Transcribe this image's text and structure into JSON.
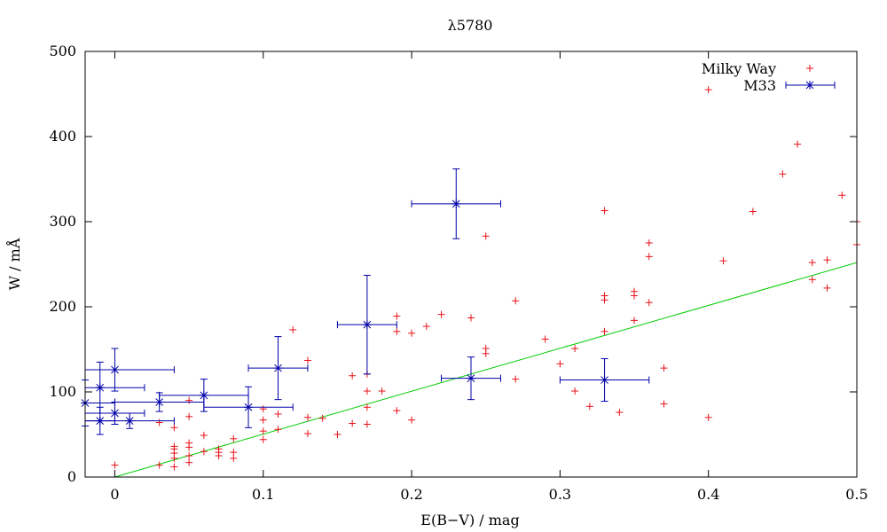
{
  "chart_data": {
    "type": "scatter",
    "title": "λ5780",
    "xlabel": "E(B−V) / mag",
    "ylabel": "W / mÅ",
    "xlim": [
      -0.02,
      0.5
    ],
    "ylim": [
      0,
      500
    ],
    "xticks": [
      0,
      0.1,
      0.2,
      0.3,
      0.4,
      0.5
    ],
    "xtick_labels": [
      "0",
      "0.1",
      "0.2",
      "0.3",
      "0.4",
      "0.5"
    ],
    "yticks": [
      0,
      100,
      200,
      300,
      400,
      500
    ],
    "ytick_labels": [
      "0",
      "100",
      "200",
      "300",
      "400",
      "500"
    ],
    "legend": {
      "position": "top-right",
      "entries": [
        {
          "label": "Milky Way",
          "marker": "plus",
          "color": "#e8121a"
        },
        {
          "label": "M33",
          "marker": "star-errorbar",
          "color": "#0000a8"
        }
      ]
    },
    "series": [
      {
        "name": "Milky Way",
        "marker": "plus",
        "color": "#e8121a",
        "points": [
          [
            0.0,
            14
          ],
          [
            0.03,
            14
          ],
          [
            0.03,
            64
          ],
          [
            0.04,
            12
          ],
          [
            0.04,
            22
          ],
          [
            0.04,
            28
          ],
          [
            0.04,
            33
          ],
          [
            0.04,
            36
          ],
          [
            0.04,
            58
          ],
          [
            0.05,
            17
          ],
          [
            0.05,
            25
          ],
          [
            0.05,
            35
          ],
          [
            0.05,
            40
          ],
          [
            0.05,
            71
          ],
          [
            0.05,
            90
          ],
          [
            0.06,
            30
          ],
          [
            0.06,
            49
          ],
          [
            0.07,
            25
          ],
          [
            0.07,
            29
          ],
          [
            0.07,
            33
          ],
          [
            0.08,
            22
          ],
          [
            0.08,
            29
          ],
          [
            0.08,
            45
          ],
          [
            0.1,
            44
          ],
          [
            0.1,
            54
          ],
          [
            0.1,
            67
          ],
          [
            0.1,
            80
          ],
          [
            0.11,
            56
          ],
          [
            0.11,
            74
          ],
          [
            0.12,
            173
          ],
          [
            0.13,
            51
          ],
          [
            0.13,
            70
          ],
          [
            0.13,
            137
          ],
          [
            0.14,
            69
          ],
          [
            0.15,
            50
          ],
          [
            0.16,
            63
          ],
          [
            0.16,
            119
          ],
          [
            0.17,
            62
          ],
          [
            0.17,
            82
          ],
          [
            0.17,
            101
          ],
          [
            0.17,
            121
          ],
          [
            0.18,
            101
          ],
          [
            0.19,
            78
          ],
          [
            0.19,
            171
          ],
          [
            0.19,
            189
          ],
          [
            0.2,
            67
          ],
          [
            0.2,
            169
          ],
          [
            0.21,
            177
          ],
          [
            0.22,
            191
          ],
          [
            0.24,
            187
          ],
          [
            0.25,
            145
          ],
          [
            0.25,
            151
          ],
          [
            0.25,
            283
          ],
          [
            0.27,
            115
          ],
          [
            0.27,
            207
          ],
          [
            0.29,
            162
          ],
          [
            0.3,
            133
          ],
          [
            0.31,
            101
          ],
          [
            0.31,
            151
          ],
          [
            0.32,
            83
          ],
          [
            0.33,
            171
          ],
          [
            0.33,
            208
          ],
          [
            0.33,
            213
          ],
          [
            0.33,
            313
          ],
          [
            0.34,
            76
          ],
          [
            0.35,
            184
          ],
          [
            0.35,
            213
          ],
          [
            0.35,
            218
          ],
          [
            0.36,
            205
          ],
          [
            0.36,
            259
          ],
          [
            0.36,
            275
          ],
          [
            0.37,
            86
          ],
          [
            0.37,
            128
          ],
          [
            0.4,
            70
          ],
          [
            0.4,
            455
          ],
          [
            0.41,
            254
          ],
          [
            0.43,
            312
          ],
          [
            0.45,
            356
          ],
          [
            0.46,
            391
          ],
          [
            0.47,
            232
          ],
          [
            0.47,
            252
          ],
          [
            0.48,
            222
          ],
          [
            0.48,
            255
          ],
          [
            0.49,
            331
          ],
          [
            0.5,
            273
          ],
          [
            0.5,
            300
          ]
        ]
      },
      {
        "name": "M33",
        "marker": "star-errorbar",
        "color": "#0000a8",
        "points": [
          {
            "x": -0.02,
            "y": 87,
            "xerr": 0.02,
            "yerr": 27
          },
          {
            "x": -0.01,
            "y": 66,
            "xerr": 0.01,
            "yerr": 16
          },
          {
            "x": -0.01,
            "y": 105,
            "xerr": 0.03,
            "yerr": 30
          },
          {
            "x": 0.0,
            "y": 126,
            "xerr": 0.04,
            "yerr": 25
          },
          {
            "x": 0.0,
            "y": 75,
            "xerr": 0.02,
            "yerr": 13
          },
          {
            "x": 0.01,
            "y": 66,
            "xerr": 0.03,
            "yerr": 9
          },
          {
            "x": 0.03,
            "y": 88,
            "xerr": 0.03,
            "yerr": 11
          },
          {
            "x": 0.06,
            "y": 96,
            "xerr": 0.03,
            "yerr": 19
          },
          {
            "x": 0.09,
            "y": 82,
            "xerr": 0.03,
            "yerr": 24
          },
          {
            "x": 0.11,
            "y": 128,
            "xerr": 0.02,
            "yerr": 37
          },
          {
            "x": 0.17,
            "y": 179,
            "xerr": 0.02,
            "yerr": 58
          },
          {
            "x": 0.23,
            "y": 321,
            "xerr": 0.03,
            "yerr": 41
          },
          {
            "x": 0.24,
            "y": 116,
            "xerr": 0.02,
            "yerr": 25
          },
          {
            "x": 0.33,
            "y": 114,
            "xerr": 0.03,
            "yerr": 25
          }
        ]
      }
    ],
    "fit_line": {
      "color": "#00cc00",
      "points": [
        [
          0.0,
          0
        ],
        [
          0.5,
          252
        ]
      ]
    }
  }
}
